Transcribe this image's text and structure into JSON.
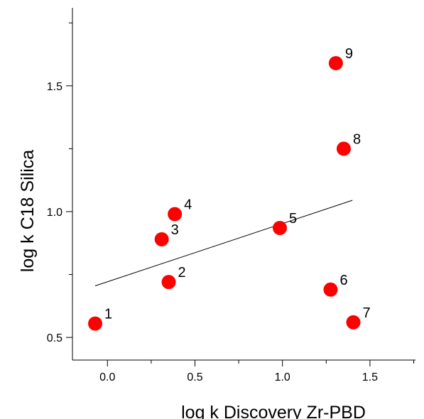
{
  "chart_data": {
    "type": "scatter",
    "xlabel": "log k Discovery Zr-PBD",
    "ylabel": "log k  C18 Silica",
    "xlim": [
      -0.2,
      1.76
    ],
    "ylim": [
      0.41,
      1.81
    ],
    "x_ticks": [
      0.0,
      0.5,
      1.0,
      1.5
    ],
    "y_ticks": [
      0.5,
      1.0,
      1.5
    ],
    "x_tick_labels": [
      "0.0",
      "0.5",
      "1.0",
      "1.5"
    ],
    "y_tick_labels": [
      "0.5",
      "1.0",
      "1.5"
    ],
    "grid": false,
    "points": [
      {
        "label": "1",
        "x": -0.07,
        "y": 0.555
      },
      {
        "label": "2",
        "x": 0.35,
        "y": 0.72
      },
      {
        "label": "3",
        "x": 0.31,
        "y": 0.89
      },
      {
        "label": "4",
        "x": 0.385,
        "y": 0.99
      },
      {
        "label": "5",
        "x": 0.985,
        "y": 0.935
      },
      {
        "label": "6",
        "x": 1.275,
        "y": 0.69
      },
      {
        "label": "7",
        "x": 1.405,
        "y": 0.56
      },
      {
        "label": "8",
        "x": 1.35,
        "y": 1.25
      },
      {
        "label": "9",
        "x": 1.305,
        "y": 1.59
      }
    ],
    "regression_line": {
      "x": [
        -0.07,
        1.4
      ],
      "y": [
        0.705,
        1.045
      ]
    },
    "colors": {
      "marker": "#ff0000",
      "line": "#000000",
      "axis": "#000000"
    }
  }
}
